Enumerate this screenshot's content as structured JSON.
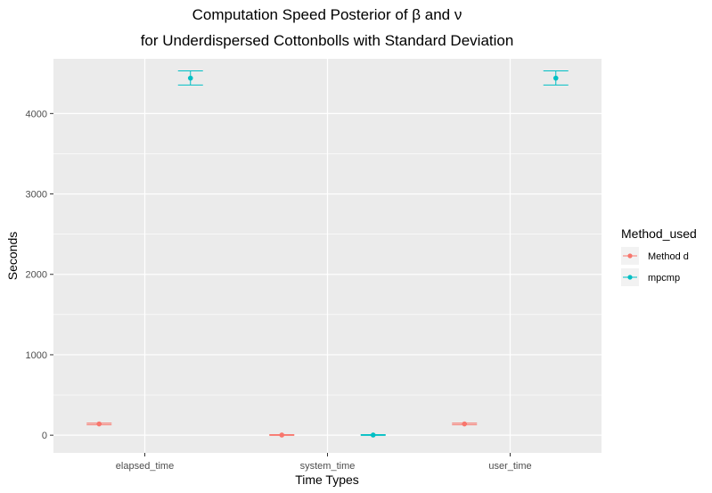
{
  "title_line1": "Computation Speed Posterior of β and ν",
  "title_line2": "for Underdispersed Cottonbolls with Standard Deviation",
  "colors": {
    "panel_bg": "#ebebeb",
    "grid": "#ffffff",
    "method_d": "#f8766d",
    "mpcmp": "#00bfc4"
  },
  "chart_data": {
    "type": "scatter",
    "title": "Computation Speed Posterior of β and ν for Underdispersed Cottonbolls with Standard Deviation",
    "xlabel": "Time Types",
    "ylabel": "Seconds",
    "categories": [
      "elapsed_time",
      "system_time",
      "user_time"
    ],
    "yticks": [
      0,
      1000,
      2000,
      3000,
      4000
    ],
    "ylim": [
      -220,
      4680
    ],
    "grid": true,
    "legend_title": "Method_used",
    "legend_position": "right",
    "series": [
      {
        "name": "Method d",
        "color": "#f8766d",
        "values": [
          140,
          2,
          140
        ],
        "lower": [
          130,
          -3,
          130
        ],
        "upper": [
          150,
          7,
          150
        ]
      },
      {
        "name": "mpcmp",
        "color": "#00bfc4",
        "values": [
          4440,
          2,
          4440
        ],
        "lower": [
          4355,
          -3,
          4355
        ],
        "upper": [
          4530,
          7,
          4530
        ]
      }
    ]
  }
}
